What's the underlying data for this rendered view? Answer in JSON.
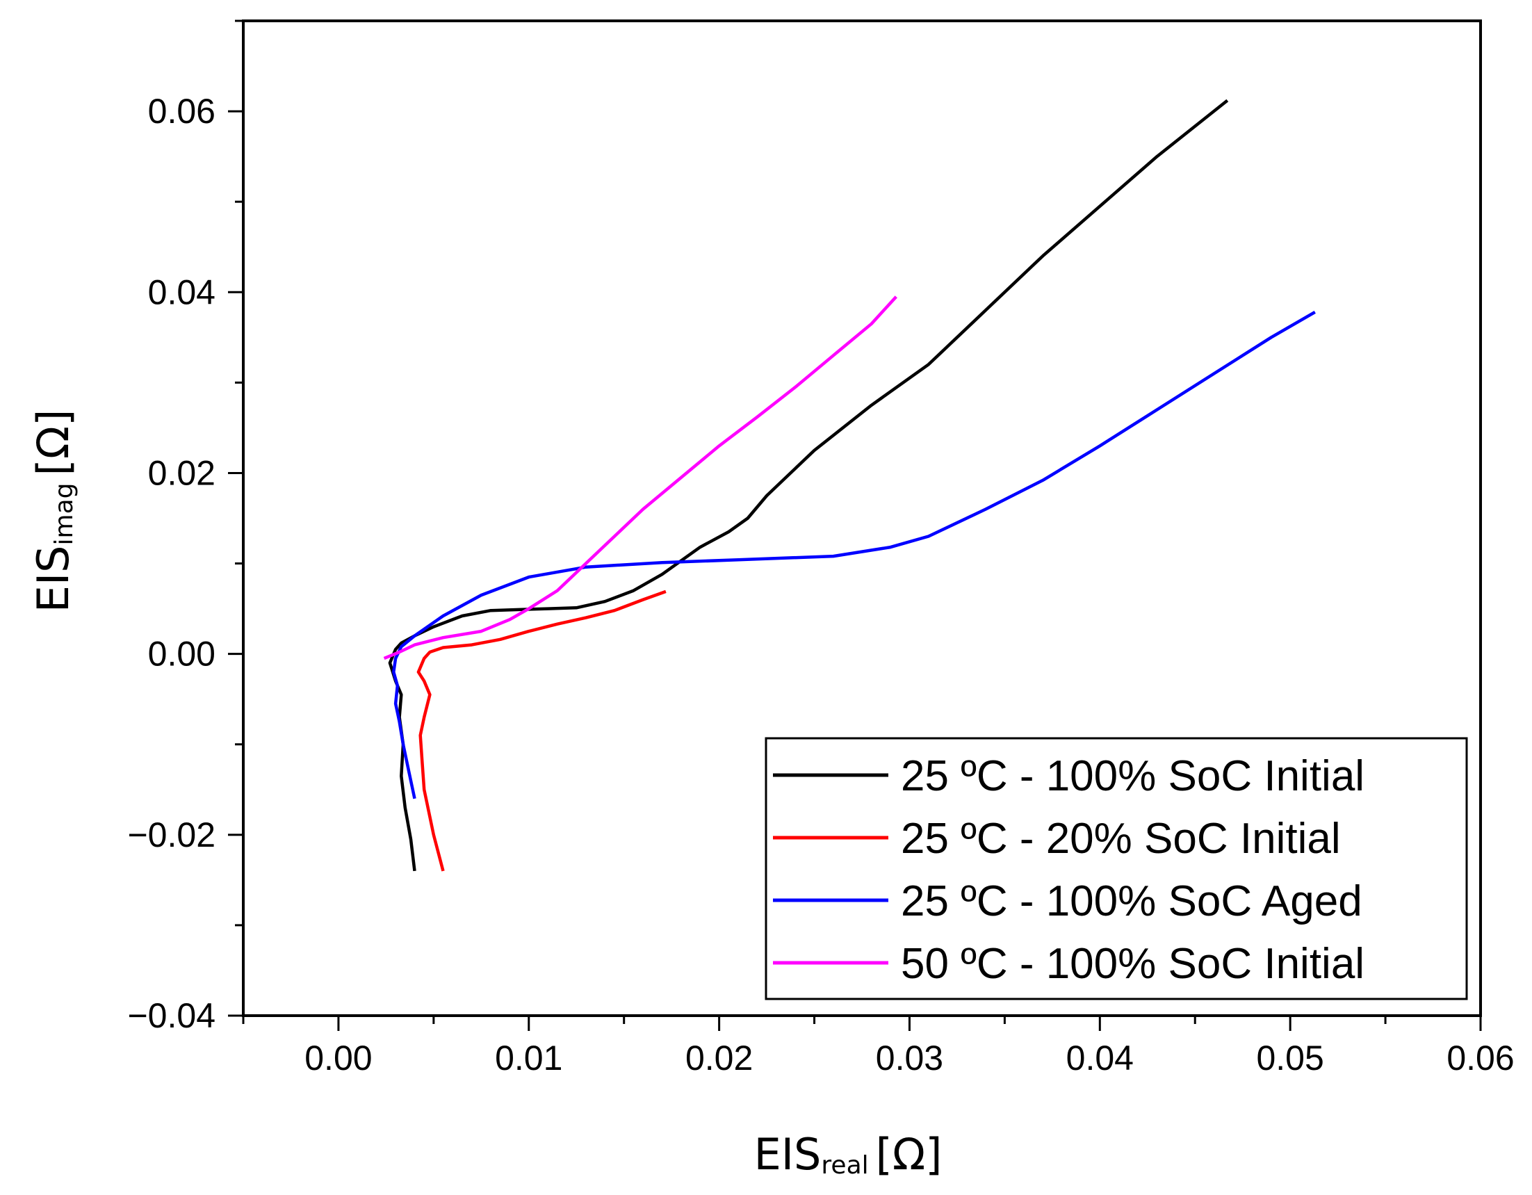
{
  "chart_data": {
    "type": "line",
    "title": "",
    "xlabel": {
      "main": "EIS",
      "sub": "real",
      "unit": "[Ω]"
    },
    "ylabel": {
      "main": "EIS",
      "sub": "imag",
      "unit": "[Ω]"
    },
    "xlim": [
      -0.005,
      0.06
    ],
    "ylim": [
      -0.04,
      0.07
    ],
    "x_ticks": [
      0.0,
      0.01,
      0.02,
      0.03,
      0.04,
      0.05,
      0.06
    ],
    "x_tick_labels": [
      "0.00",
      "0.01",
      "0.02",
      "0.03",
      "0.04",
      "0.05",
      "0.06"
    ],
    "y_ticks": [
      -0.04,
      -0.02,
      0.0,
      0.02,
      0.04,
      0.06
    ],
    "y_tick_labels": [
      "−0.04",
      "−0.02",
      "0.00",
      "0.02",
      "0.04",
      "0.06"
    ],
    "grid": false,
    "legend_position": "bottom-right",
    "series": [
      {
        "name": "25 ºC - 100% SoC Initial",
        "color": "#000000",
        "points": [
          [
            0.004,
            -0.024
          ],
          [
            0.0038,
            -0.0205
          ],
          [
            0.0035,
            -0.017
          ],
          [
            0.0033,
            -0.0135
          ],
          [
            0.0034,
            -0.01
          ],
          [
            0.0032,
            -0.007
          ],
          [
            0.0033,
            -0.0045
          ],
          [
            0.003,
            -0.003
          ],
          [
            0.0027,
            -0.001
          ],
          [
            0.003,
            0.0005
          ],
          [
            0.0033,
            0.0012
          ],
          [
            0.004,
            0.002
          ],
          [
            0.005,
            0.003
          ],
          [
            0.0065,
            0.0042
          ],
          [
            0.008,
            0.0048
          ],
          [
            0.0095,
            0.0049
          ],
          [
            0.011,
            0.005
          ],
          [
            0.0125,
            0.0051
          ],
          [
            0.014,
            0.0058
          ],
          [
            0.0155,
            0.007
          ],
          [
            0.017,
            0.0088
          ],
          [
            0.019,
            0.0118
          ],
          [
            0.0205,
            0.0135
          ],
          [
            0.0215,
            0.015
          ],
          [
            0.0225,
            0.0175
          ],
          [
            0.025,
            0.0225
          ],
          [
            0.028,
            0.0275
          ],
          [
            0.031,
            0.032
          ],
          [
            0.034,
            0.038
          ],
          [
            0.037,
            0.044
          ],
          [
            0.04,
            0.0495
          ],
          [
            0.043,
            0.055
          ],
          [
            0.0467,
            0.0612
          ]
        ]
      },
      {
        "name": "25 ºC - 20% SoC Initial",
        "color": "#ff0000",
        "points": [
          [
            0.0055,
            -0.024
          ],
          [
            0.005,
            -0.02
          ],
          [
            0.0045,
            -0.015
          ],
          [
            0.0044,
            -0.012
          ],
          [
            0.0043,
            -0.009
          ],
          [
            0.0045,
            -0.007
          ],
          [
            0.0048,
            -0.0045
          ],
          [
            0.0045,
            -0.003
          ],
          [
            0.0042,
            -0.002
          ],
          [
            0.0045,
            -0.0005
          ],
          [
            0.0048,
            0.0002
          ],
          [
            0.0055,
            0.0007
          ],
          [
            0.007,
            0.001
          ],
          [
            0.0085,
            0.0016
          ],
          [
            0.01,
            0.0025
          ],
          [
            0.0115,
            0.0033
          ],
          [
            0.013,
            0.004
          ],
          [
            0.0145,
            0.0048
          ],
          [
            0.016,
            0.006
          ],
          [
            0.0172,
            0.0069
          ]
        ]
      },
      {
        "name": "25 ºC - 100% SoC Aged",
        "color": "#0000ff",
        "points": [
          [
            0.004,
            -0.016
          ],
          [
            0.0037,
            -0.013
          ],
          [
            0.0034,
            -0.01
          ],
          [
            0.0032,
            -0.0075
          ],
          [
            0.003,
            -0.0055
          ],
          [
            0.0031,
            -0.0035
          ],
          [
            0.0029,
            -0.002
          ],
          [
            0.003,
            -0.0005
          ],
          [
            0.0033,
            0.0008
          ],
          [
            0.004,
            0.002
          ],
          [
            0.0055,
            0.0042
          ],
          [
            0.0075,
            0.0065
          ],
          [
            0.01,
            0.0085
          ],
          [
            0.013,
            0.0096
          ],
          [
            0.017,
            0.0101
          ],
          [
            0.021,
            0.0104
          ],
          [
            0.026,
            0.0108
          ],
          [
            0.029,
            0.0118
          ],
          [
            0.031,
            0.013
          ],
          [
            0.034,
            0.016
          ],
          [
            0.037,
            0.0192
          ],
          [
            0.04,
            0.023
          ],
          [
            0.043,
            0.027
          ],
          [
            0.046,
            0.031
          ],
          [
            0.049,
            0.035
          ],
          [
            0.0513,
            0.0378
          ]
        ]
      },
      {
        "name": "50 ºC - 100% SoC Initial",
        "color": "#ff00ff",
        "points": [
          [
            0.0024,
            -0.0005
          ],
          [
            0.0032,
            0.0002
          ],
          [
            0.004,
            0.001
          ],
          [
            0.0055,
            0.0018
          ],
          [
            0.0075,
            0.0025
          ],
          [
            0.009,
            0.0038
          ],
          [
            0.01,
            0.005
          ],
          [
            0.0115,
            0.007
          ],
          [
            0.0135,
            0.011
          ],
          [
            0.016,
            0.016
          ],
          [
            0.018,
            0.0195
          ],
          [
            0.02,
            0.023
          ],
          [
            0.022,
            0.0262
          ],
          [
            0.024,
            0.0295
          ],
          [
            0.026,
            0.033
          ],
          [
            0.028,
            0.0365
          ],
          [
            0.0293,
            0.0395
          ]
        ]
      }
    ]
  }
}
